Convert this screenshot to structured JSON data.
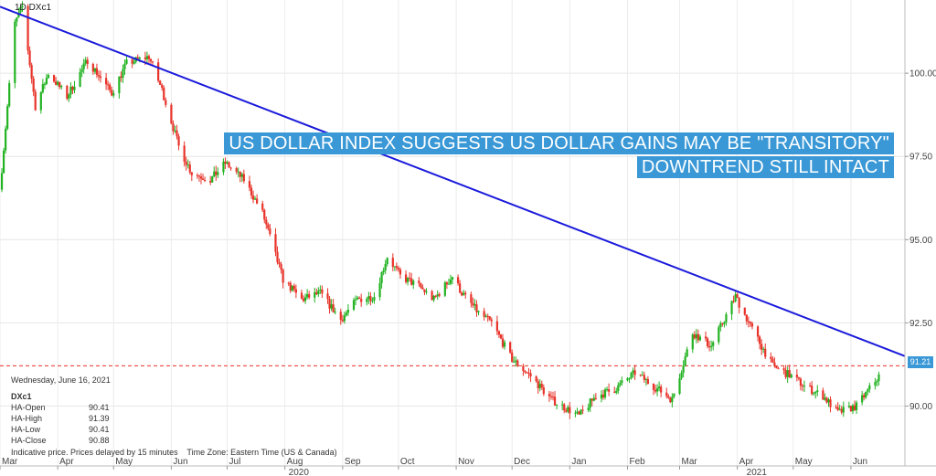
{
  "symbol_top": "DXc1",
  "symbol_prefix": "1D",
  "banner": {
    "line1": "US DOLLAR INDEX SUGGESTS US DOLLAR GAINS MAY BE \"TRANSITORY\"",
    "line2": "DOWNTREND STILL INTACT"
  },
  "info": {
    "date": "Wednesday, June 16, 2021",
    "symbol": "DXc1",
    "rows": [
      {
        "label": "HA-Open",
        "value": "90.41"
      },
      {
        "label": "HA-High",
        "value": "91.39"
      },
      {
        "label": "HA-Low",
        "value": "90.41"
      },
      {
        "label": "HA-Close",
        "value": "90.88"
      }
    ],
    "footer": "Indicative price. Prices delayed by 15 minutes    Time Zone: Eastern Time (US & Canada)"
  },
  "current_price_label": "91.21",
  "colors": {
    "up": "#22b322",
    "down": "#e8332a",
    "trendline": "#1a1adb",
    "banner": "#3a98d6",
    "price_line": "#e8332a"
  },
  "chart_data": {
    "type": "candlestick",
    "title": "US DOLLAR INDEX SUGGESTS US DOLLAR GAINS MAY BE \"TRANSITORY\" DOWNTREND STILL INTACT",
    "ylim": [
      88.2,
      102.2
    ],
    "y_ticks": [
      "90.00",
      "92.50",
      "95.00",
      "97.50",
      "100.00"
    ],
    "x_ticks": [
      "Mar",
      "Apr",
      "May",
      "Jun",
      "Jul",
      "Aug",
      "Sep",
      "Oct",
      "Nov",
      "Dec",
      "Jan",
      "Feb",
      "Mar",
      "Apr",
      "May",
      "Jun"
    ],
    "year_labels": [
      "2020",
      "2021"
    ],
    "grid": true,
    "current_price": 91.21,
    "trendline": {
      "start": [
        "2020-03-01",
        102.0
      ],
      "end": [
        "2021-06-30",
        91.5
      ]
    },
    "anchors": [
      [
        "2020-03-01",
        96.5
      ],
      [
        "2020-03-09",
        101.5
      ],
      [
        "2020-03-13",
        102.0
      ],
      [
        "2020-03-20",
        99.0
      ],
      [
        "2020-03-27",
        100.0
      ],
      [
        "2020-04-06",
        99.3
      ],
      [
        "2020-04-17",
        100.4
      ],
      [
        "2020-04-30",
        99.4
      ],
      [
        "2020-05-08",
        100.3
      ],
      [
        "2020-05-20",
        100.5
      ],
      [
        "2020-05-27",
        99.5
      ],
      [
        "2020-06-05",
        97.8
      ],
      [
        "2020-06-12",
        97.0
      ],
      [
        "2020-06-22",
        96.8
      ],
      [
        "2020-06-30",
        97.3
      ],
      [
        "2020-07-10",
        96.8
      ],
      [
        "2020-07-20",
        95.8
      ],
      [
        "2020-07-31",
        93.8
      ],
      [
        "2020-08-10",
        93.2
      ],
      [
        "2020-08-20",
        93.4
      ],
      [
        "2020-08-31",
        92.6
      ],
      [
        "2020-09-09",
        93.2
      ],
      [
        "2020-09-18",
        93.3
      ],
      [
        "2020-09-25",
        94.5
      ],
      [
        "2020-10-02",
        93.9
      ],
      [
        "2020-10-12",
        93.6
      ],
      [
        "2020-10-20",
        93.2
      ],
      [
        "2020-10-30",
        93.9
      ],
      [
        "2020-11-04",
        93.4
      ],
      [
        "2020-11-13",
        92.8
      ],
      [
        "2020-11-20",
        92.5
      ],
      [
        "2020-12-01",
        91.4
      ],
      [
        "2020-12-11",
        90.9
      ],
      [
        "2020-12-22",
        90.2
      ],
      [
        "2021-01-06",
        89.7
      ],
      [
        "2021-01-15",
        90.3
      ],
      [
        "2021-01-25",
        90.5
      ],
      [
        "2021-02-05",
        91.0
      ],
      [
        "2021-02-15",
        90.6
      ],
      [
        "2021-02-25",
        90.2
      ],
      [
        "2021-03-08",
        92.2
      ],
      [
        "2021-03-18",
        91.8
      ],
      [
        "2021-03-31",
        93.3
      ],
      [
        "2021-04-09",
        92.3
      ],
      [
        "2021-04-20",
        91.2
      ],
      [
        "2021-04-30",
        90.9
      ],
      [
        "2021-05-07",
        90.6
      ],
      [
        "2021-05-17",
        90.3
      ],
      [
        "2021-05-25",
        89.8
      ],
      [
        "2021-06-04",
        90.0
      ],
      [
        "2021-06-16",
        90.9
      ]
    ]
  }
}
